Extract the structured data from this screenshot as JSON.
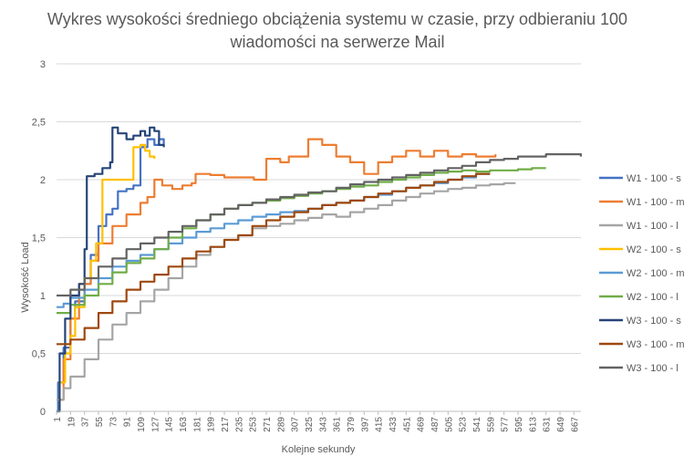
{
  "chart_data": {
    "type": "line",
    "title": "Wykres wysokości średniego obciążenia systemu w czasie, przy odbieraniu 100 wiadomości na serwerze Mail",
    "xlabel": "Kolejne sekundy",
    "ylabel": "Wysokość Load",
    "ylim": [
      0,
      3
    ],
    "y_ticks": [
      "0",
      "0,5",
      "1",
      "1,5",
      "2",
      "2,5",
      "3"
    ],
    "x_ticks": [
      "1",
      "19",
      "37",
      "55",
      "73",
      "91",
      "109",
      "127",
      "145",
      "163",
      "181",
      "199",
      "217",
      "235",
      "253",
      "271",
      "289",
      "307",
      "325",
      "343",
      "361",
      "379",
      "397",
      "415",
      "433",
      "451",
      "469",
      "487",
      "505",
      "523",
      "541",
      "559",
      "577",
      "595",
      "613",
      "631",
      "649",
      "667"
    ],
    "grid": "horizontal",
    "legend_position": "right",
    "series": [
      {
        "name": "W1 - 100 - s",
        "color": "#4472C4",
        "points": [
          [
            1,
            0
          ],
          [
            3,
            0.25
          ],
          [
            10,
            0.55
          ],
          [
            19,
            0.8
          ],
          [
            25,
            0.95
          ],
          [
            37,
            1.1
          ],
          [
            45,
            1.35
          ],
          [
            55,
            1.6
          ],
          [
            65,
            1.7
          ],
          [
            73,
            1.75
          ],
          [
            80,
            1.9
          ],
          [
            91,
            1.92
          ],
          [
            100,
            1.95
          ],
          [
            109,
            2.28
          ],
          [
            118,
            2.35
          ],
          [
            127,
            2.3
          ],
          [
            133,
            2.35
          ],
          [
            139,
            2.3
          ]
        ]
      },
      {
        "name": "W1 - 100 - m",
        "color": "#ED7D31",
        "points": [
          [
            1,
            0.1
          ],
          [
            10,
            0.45
          ],
          [
            19,
            0.8
          ],
          [
            30,
            1.1
          ],
          [
            45,
            1.3
          ],
          [
            55,
            1.45
          ],
          [
            73,
            1.6
          ],
          [
            91,
            1.7
          ],
          [
            109,
            1.8
          ],
          [
            118,
            1.85
          ],
          [
            127,
            2.0
          ],
          [
            137,
            1.95
          ],
          [
            150,
            1.92
          ],
          [
            163,
            1.95
          ],
          [
            175,
            1.97
          ],
          [
            180,
            2.05
          ],
          [
            199,
            2.04
          ],
          [
            217,
            2.02
          ],
          [
            240,
            2.02
          ],
          [
            255,
            2.0
          ],
          [
            268,
            2.0
          ],
          [
            271,
            2.18
          ],
          [
            289,
            2.15
          ],
          [
            300,
            2.2
          ],
          [
            315,
            2.2
          ],
          [
            325,
            2.35
          ],
          [
            343,
            2.3
          ],
          [
            361,
            2.2
          ],
          [
            379,
            2.15
          ],
          [
            397,
            2.05
          ],
          [
            415,
            2.15
          ],
          [
            433,
            2.2
          ],
          [
            451,
            2.25
          ],
          [
            469,
            2.2
          ],
          [
            487,
            2.25
          ],
          [
            505,
            2.2
          ],
          [
            523,
            2.22
          ],
          [
            541,
            2.2
          ],
          [
            559,
            2.2
          ],
          [
            566,
            2.22
          ]
        ]
      },
      {
        "name": "W1 - 100 - l",
        "color": "#A5A5A5",
        "points": [
          [
            1,
            0.1
          ],
          [
            10,
            0.2
          ],
          [
            19,
            0.3
          ],
          [
            37,
            0.45
          ],
          [
            55,
            0.62
          ],
          [
            73,
            0.75
          ],
          [
            91,
            0.85
          ],
          [
            109,
            0.95
          ],
          [
            127,
            1.05
          ],
          [
            145,
            1.15
          ],
          [
            163,
            1.25
          ],
          [
            181,
            1.35
          ],
          [
            199,
            1.42
          ],
          [
            217,
            1.48
          ],
          [
            235,
            1.52
          ],
          [
            253,
            1.58
          ],
          [
            271,
            1.6
          ],
          [
            289,
            1.62
          ],
          [
            307,
            1.65
          ],
          [
            325,
            1.67
          ],
          [
            343,
            1.7
          ],
          [
            361,
            1.68
          ],
          [
            379,
            1.72
          ],
          [
            397,
            1.75
          ],
          [
            415,
            1.78
          ],
          [
            433,
            1.82
          ],
          [
            451,
            1.85
          ],
          [
            469,
            1.88
          ],
          [
            487,
            1.9
          ],
          [
            505,
            1.92
          ],
          [
            523,
            1.93
          ],
          [
            541,
            1.95
          ],
          [
            559,
            1.96
          ],
          [
            577,
            1.97
          ],
          [
            592,
            1.97
          ]
        ]
      },
      {
        "name": "W2 - 100 - s",
        "color": "#FFC000",
        "points": [
          [
            1,
            0
          ],
          [
            5,
            0.25
          ],
          [
            12,
            0.5
          ],
          [
            19,
            0.65
          ],
          [
            25,
            0.9
          ],
          [
            37,
            1.15
          ],
          [
            45,
            1.3
          ],
          [
            52,
            1.45
          ],
          [
            60,
            2.0
          ],
          [
            73,
            2.0
          ],
          [
            91,
            2.0
          ],
          [
            95,
            2.0
          ],
          [
            100,
            2.28
          ],
          [
            109,
            2.3
          ],
          [
            115,
            2.25
          ],
          [
            121,
            2.2
          ],
          [
            127,
            2.18
          ]
        ]
      },
      {
        "name": "W2 - 100 - m",
        "color": "#5B9BD5",
        "points": [
          [
            1,
            0.9
          ],
          [
            10,
            0.93
          ],
          [
            19,
            0.98
          ],
          [
            37,
            1.05
          ],
          [
            55,
            1.15
          ],
          [
            73,
            1.25
          ],
          [
            91,
            1.3
          ],
          [
            109,
            1.35
          ],
          [
            127,
            1.4
          ],
          [
            145,
            1.45
          ],
          [
            163,
            1.5
          ],
          [
            181,
            1.55
          ],
          [
            199,
            1.58
          ],
          [
            217,
            1.62
          ],
          [
            235,
            1.65
          ],
          [
            253,
            1.68
          ],
          [
            271,
            1.7
          ],
          [
            289,
            1.72
          ],
          [
            307,
            1.73
          ],
          [
            325,
            1.75
          ],
          [
            343,
            1.78
          ],
          [
            361,
            1.8
          ],
          [
            379,
            1.82
          ],
          [
            397,
            1.85
          ],
          [
            415,
            1.87
          ],
          [
            433,
            1.9
          ],
          [
            451,
            1.93
          ],
          [
            469,
            1.95
          ],
          [
            487,
            1.97
          ],
          [
            505,
            2.0
          ],
          [
            523,
            2.02
          ],
          [
            541,
            2.05
          ],
          [
            559,
            2.05
          ]
        ]
      },
      {
        "name": "W2 - 100 - l",
        "color": "#70AD47",
        "points": [
          [
            1,
            0.85
          ],
          [
            19,
            0.92
          ],
          [
            37,
            1.0
          ],
          [
            55,
            1.1
          ],
          [
            73,
            1.2
          ],
          [
            91,
            1.28
          ],
          [
            109,
            1.32
          ],
          [
            127,
            1.4
          ],
          [
            145,
            1.5
          ],
          [
            163,
            1.58
          ],
          [
            181,
            1.65
          ],
          [
            199,
            1.7
          ],
          [
            217,
            1.75
          ],
          [
            235,
            1.78
          ],
          [
            253,
            1.8
          ],
          [
            271,
            1.82
          ],
          [
            289,
            1.84
          ],
          [
            307,
            1.86
          ],
          [
            325,
            1.88
          ],
          [
            343,
            1.9
          ],
          [
            361,
            1.92
          ],
          [
            379,
            1.94
          ],
          [
            397,
            1.95
          ],
          [
            415,
            1.98
          ],
          [
            433,
            2.0
          ],
          [
            451,
            2.02
          ],
          [
            469,
            2.04
          ],
          [
            487,
            2.06
          ],
          [
            505,
            2.07
          ],
          [
            523,
            2.08
          ],
          [
            541,
            2.07
          ],
          [
            559,
            2.08
          ],
          [
            577,
            2.08
          ],
          [
            595,
            2.09
          ],
          [
            613,
            2.1
          ],
          [
            631,
            2.1
          ]
        ]
      },
      {
        "name": "W3 - 100 - s",
        "color": "#264478",
        "points": [
          [
            1,
            0
          ],
          [
            5,
            0.5
          ],
          [
            12,
            0.8
          ],
          [
            19,
            1.0
          ],
          [
            30,
            1.1
          ],
          [
            37,
            1.4
          ],
          [
            40,
            2.03
          ],
          [
            50,
            2.05
          ],
          [
            55,
            2.05
          ],
          [
            60,
            2.1
          ],
          [
            70,
            2.15
          ],
          [
            73,
            2.45
          ],
          [
            80,
            2.4
          ],
          [
            91,
            2.35
          ],
          [
            100,
            2.38
          ],
          [
            109,
            2.42
          ],
          [
            115,
            2.38
          ],
          [
            121,
            2.45
          ],
          [
            127,
            2.42
          ],
          [
            133,
            2.3
          ],
          [
            139,
            2.28
          ]
        ]
      },
      {
        "name": "W3 - 100 - m",
        "color": "#9E480E",
        "points": [
          [
            1,
            0.58
          ],
          [
            19,
            0.62
          ],
          [
            37,
            0.72
          ],
          [
            55,
            0.85
          ],
          [
            73,
            0.95
          ],
          [
            91,
            1.05
          ],
          [
            109,
            1.12
          ],
          [
            127,
            1.18
          ],
          [
            145,
            1.25
          ],
          [
            163,
            1.32
          ],
          [
            181,
            1.38
          ],
          [
            199,
            1.42
          ],
          [
            217,
            1.48
          ],
          [
            235,
            1.52
          ],
          [
            253,
            1.6
          ],
          [
            271,
            1.65
          ],
          [
            289,
            1.68
          ],
          [
            307,
            1.72
          ],
          [
            325,
            1.75
          ],
          [
            343,
            1.78
          ],
          [
            361,
            1.8
          ],
          [
            379,
            1.82
          ],
          [
            397,
            1.85
          ],
          [
            415,
            1.88
          ],
          [
            433,
            1.9
          ],
          [
            451,
            1.93
          ],
          [
            469,
            1.95
          ],
          [
            487,
            1.98
          ],
          [
            505,
            2.0
          ],
          [
            523,
            2.03
          ],
          [
            541,
            2.05
          ],
          [
            559,
            2.05
          ]
        ]
      },
      {
        "name": "W3 - 100 - l",
        "color": "#636363",
        "points": [
          [
            1,
            1.0
          ],
          [
            19,
            1.05
          ],
          [
            37,
            1.15
          ],
          [
            55,
            1.25
          ],
          [
            73,
            1.32
          ],
          [
            91,
            1.4
          ],
          [
            109,
            1.45
          ],
          [
            127,
            1.5
          ],
          [
            145,
            1.55
          ],
          [
            163,
            1.6
          ],
          [
            181,
            1.65
          ],
          [
            199,
            1.7
          ],
          [
            217,
            1.75
          ],
          [
            235,
            1.78
          ],
          [
            253,
            1.8
          ],
          [
            271,
            1.83
          ],
          [
            289,
            1.85
          ],
          [
            307,
            1.87
          ],
          [
            325,
            1.89
          ],
          [
            343,
            1.9
          ],
          [
            361,
            1.93
          ],
          [
            379,
            1.96
          ],
          [
            397,
            1.98
          ],
          [
            415,
            2.0
          ],
          [
            433,
            2.02
          ],
          [
            451,
            2.04
          ],
          [
            469,
            2.06
          ],
          [
            487,
            2.08
          ],
          [
            505,
            2.1
          ],
          [
            523,
            2.12
          ],
          [
            541,
            2.15
          ],
          [
            559,
            2.17
          ],
          [
            577,
            2.18
          ],
          [
            595,
            2.2
          ],
          [
            613,
            2.2
          ],
          [
            631,
            2.22
          ],
          [
            649,
            2.22
          ],
          [
            667,
            2.22
          ],
          [
            676,
            2.2
          ]
        ]
      }
    ]
  }
}
